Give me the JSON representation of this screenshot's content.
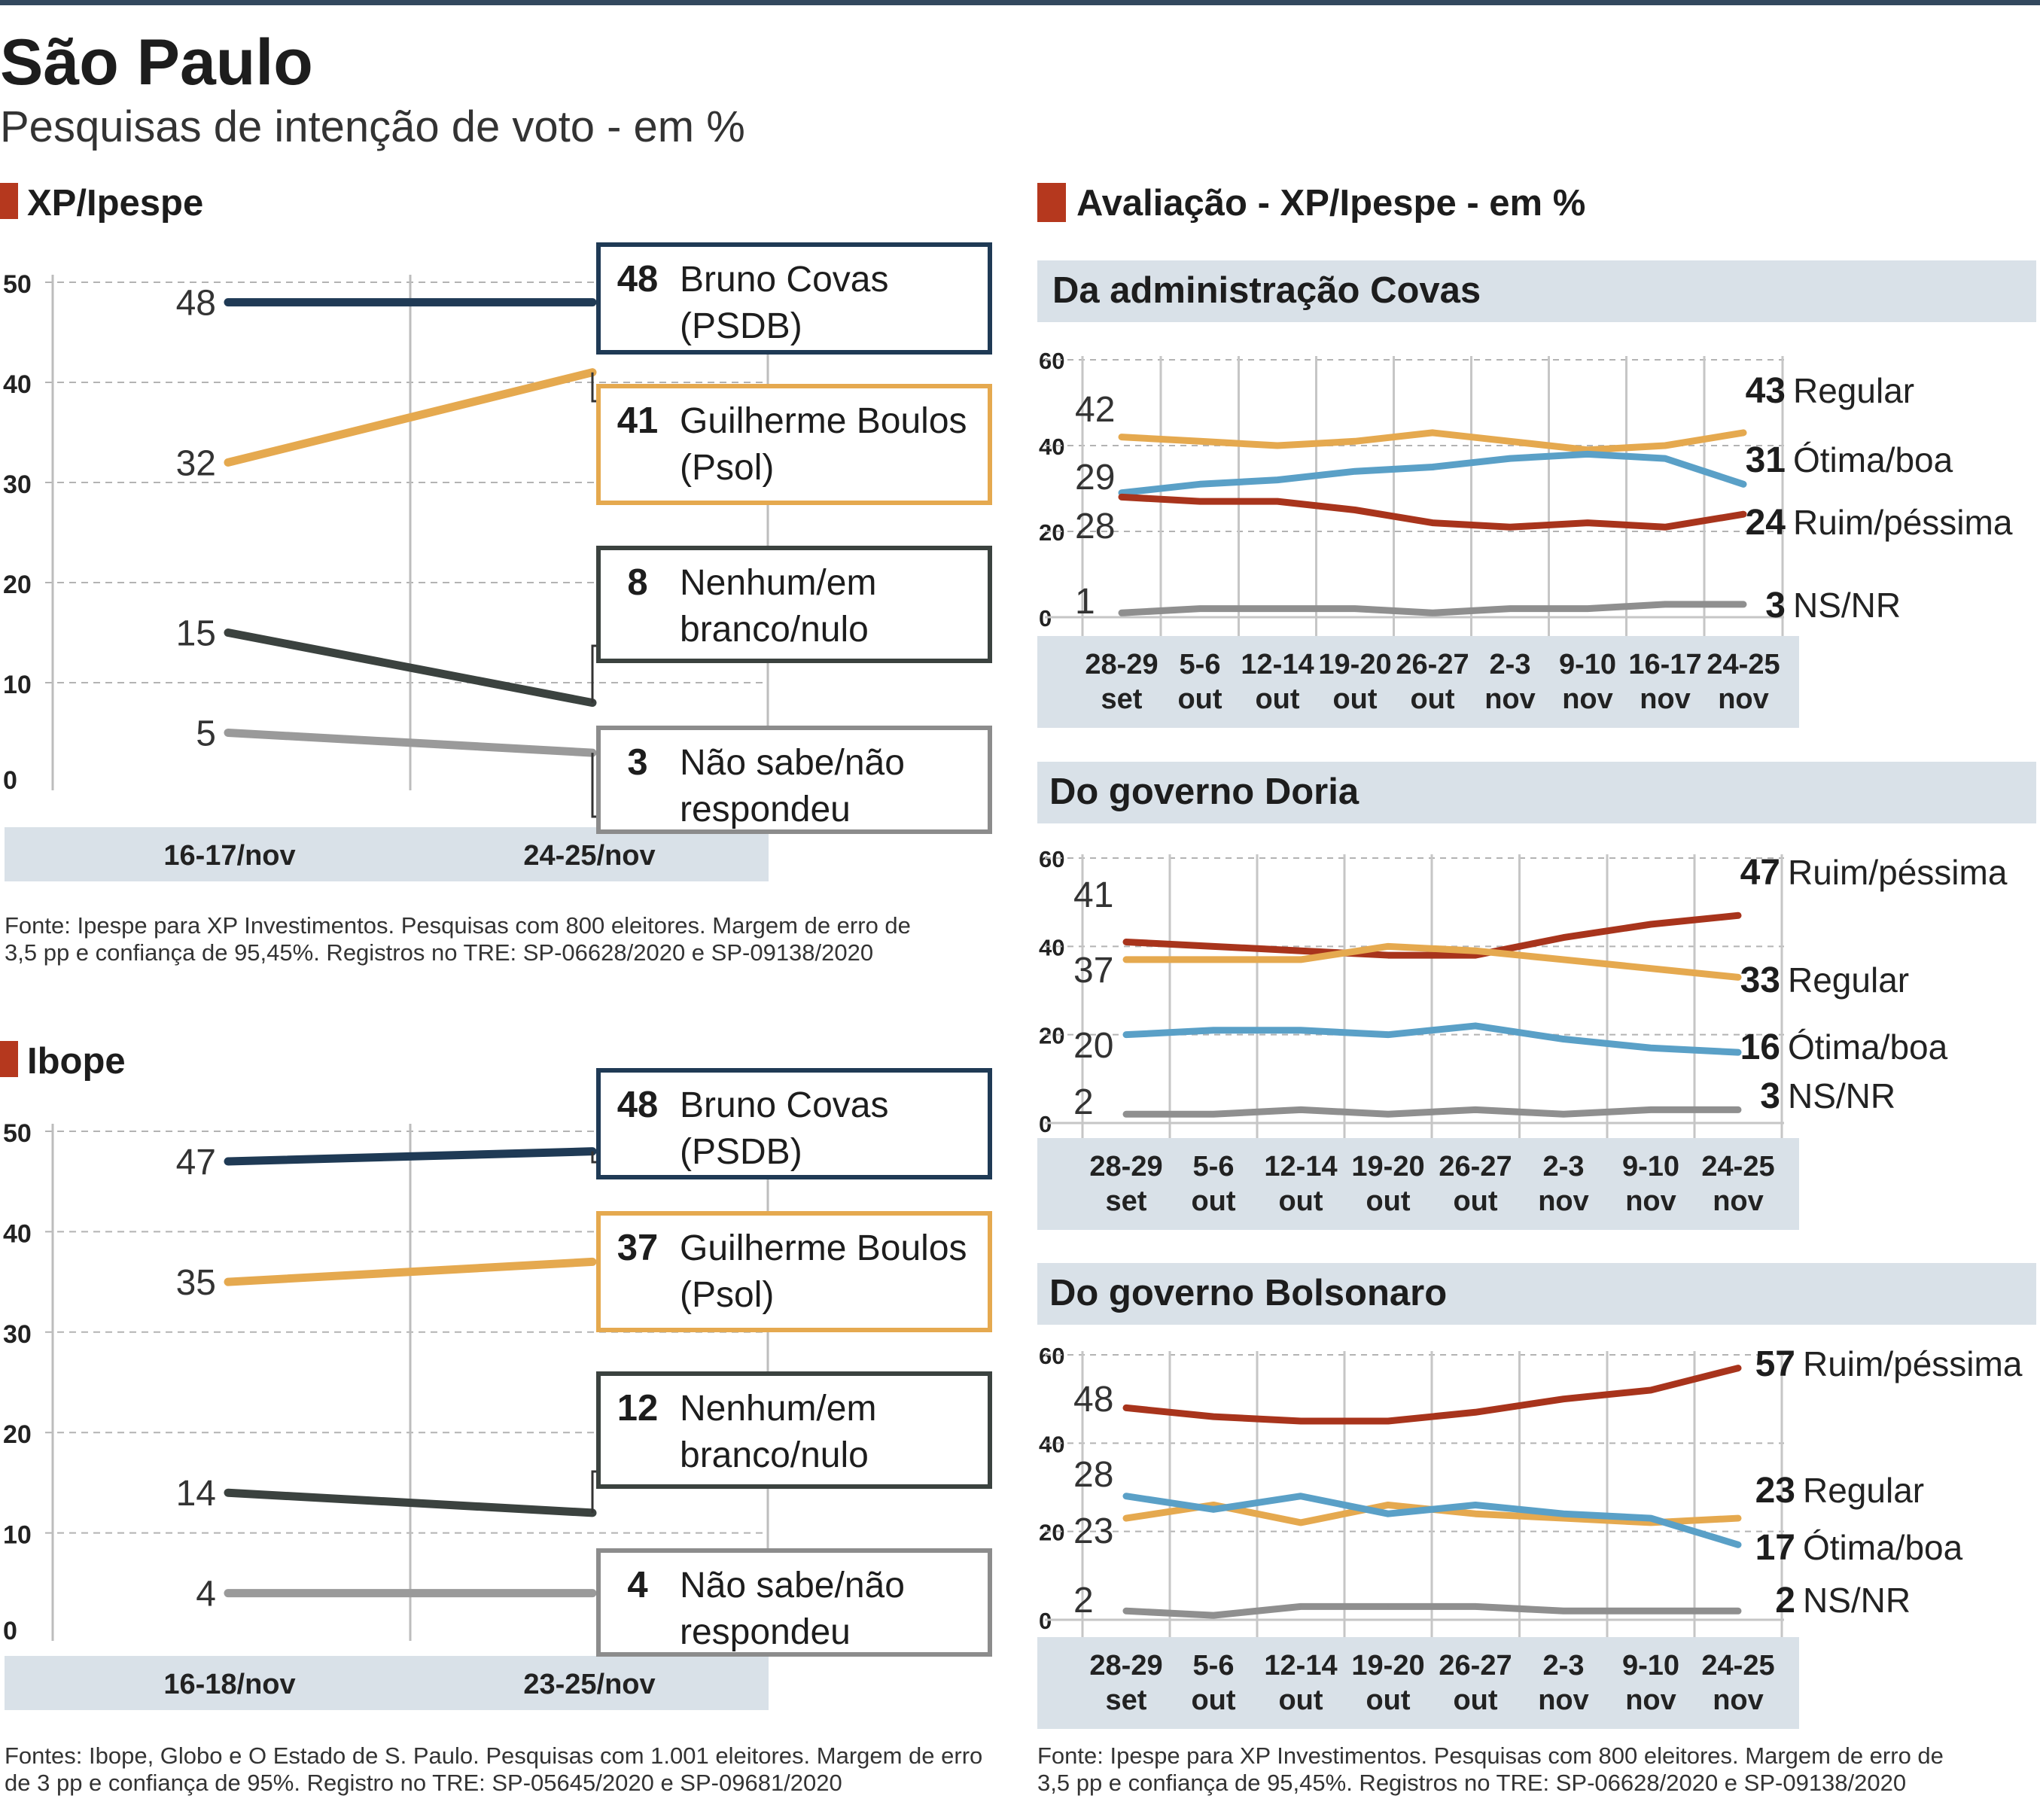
{
  "header": {
    "title": "São Paulo",
    "subtitle": "Pesquisas de intenção de voto  - em %"
  },
  "colors": {
    "accent_square": "#b5381e",
    "band": "#d9e1e8",
    "grid": "#aaaaaa",
    "Covas": "#1f3a55",
    "Boulos": "#e5a94f",
    "Nenhum": "#3b423f",
    "NaoSabe": "#9a9a9a",
    "Regular": "#e5a94f",
    "Otima": "#5aa0c7",
    "Ruim": "#a8341c",
    "NSNR": "#8f8f8f"
  },
  "sections": {
    "xp_title": "XP/Ipespe",
    "ibope_title": "Ibope",
    "aval_title": "Avaliação - XP/Ipespe - em %"
  },
  "sources": {
    "xp": [
      "Fonte: Ipespe para XP Investimentos. Pesquisas com 800 eleitores. Margem de erro de",
      "3,5 pp e confiança de 95,45%. Registros no TRE: SP-06628/2020 e SP-09138/2020"
    ],
    "ibope": [
      "Fontes: Ibope,  Globo e O Estado de S. Paulo. Pesquisas com 1.001 eleitores. Margem de erro",
      "de 3 pp e confiança de 95%. Registro no TRE:  SP-05645/2020 e SP-09681/2020"
    ],
    "aval": [
      "Fonte: Ipespe para XP Investimentos. Pesquisas com 800 eleitores. Margem de erro de",
      "3,5 pp e confiança de 95,45%. Registros no TRE: SP-06628/2020 e SP-09138/2020"
    ]
  },
  "chart_data": [
    {
      "id": "xp",
      "type": "line",
      "title": "XP/Ipespe",
      "categories": [
        "16-17/nov",
        "24-25/nov"
      ],
      "y_ticks": [
        0,
        10,
        20,
        30,
        40,
        50
      ],
      "ylim": [
        0,
        50
      ],
      "grid": true,
      "series": [
        {
          "name": "Bruno Covas",
          "party": "(PSDB)",
          "color_key": "Covas",
          "values": [
            48,
            48
          ]
        },
        {
          "name": "Guilherme Boulos",
          "party": "(Psol)",
          "color_key": "Boulos",
          "values": [
            32,
            41
          ]
        },
        {
          "name": "Nenhum/em",
          "party": "branco/nulo",
          "color_key": "Nenhum",
          "values": [
            15,
            8
          ]
        },
        {
          "name": "Não sabe/não",
          "party": "respondeu",
          "color_key": "NaoSabe",
          "values": [
            5,
            3
          ]
        }
      ]
    },
    {
      "id": "ibope",
      "type": "line",
      "title": "Ibope",
      "categories": [
        "16-18/nov",
        "23-25/nov"
      ],
      "y_ticks": [
        0,
        10,
        20,
        30,
        40,
        50
      ],
      "ylim": [
        0,
        50
      ],
      "grid": true,
      "series": [
        {
          "name": "Bruno Covas",
          "party": "(PSDB)",
          "color_key": "Covas",
          "values": [
            47,
            48
          ]
        },
        {
          "name": "Guilherme Boulos",
          "party": "(Psol)",
          "color_key": "Boulos",
          "values": [
            35,
            37
          ]
        },
        {
          "name": "Nenhum/em",
          "party": "branco/nulo",
          "color_key": "Nenhum",
          "values": [
            14,
            12
          ]
        },
        {
          "name": "Não sabe/não",
          "party": "respondeu",
          "color_key": "NaoSabe",
          "values": [
            4,
            4
          ]
        }
      ]
    },
    {
      "id": "covas",
      "type": "line",
      "title": "Da administração Covas",
      "categories": [
        [
          "28-29",
          "set"
        ],
        [
          "5-6",
          "out"
        ],
        [
          "12-14",
          "out"
        ],
        [
          "19-20",
          "out"
        ],
        [
          "26-27",
          "out"
        ],
        [
          "2-3",
          "nov"
        ],
        [
          "9-10",
          "nov"
        ],
        [
          "16-17",
          "nov"
        ],
        [
          "24-25",
          "nov"
        ]
      ],
      "y_ticks": [
        0,
        20,
        40,
        60
      ],
      "ylim": [
        0,
        60
      ],
      "grid": true,
      "series": [
        {
          "name": "Regular",
          "color_key": "Regular",
          "values": [
            42,
            41,
            40,
            41,
            43,
            41,
            39,
            40,
            43
          ],
          "start_label": "42",
          "end_label": "43"
        },
        {
          "name": "Ótima/boa",
          "color_key": "Otima",
          "values": [
            29,
            31,
            32,
            34,
            35,
            37,
            38,
            37,
            31
          ],
          "start_label": "29",
          "end_label": "31"
        },
        {
          "name": "Ruim/péssima",
          "color_key": "Ruim",
          "values": [
            28,
            27,
            27,
            25,
            22,
            21,
            22,
            21,
            24
          ],
          "start_label": "28",
          "end_label": "24"
        },
        {
          "name": "NS/NR",
          "color_key": "NSNR",
          "values": [
            1,
            2,
            2,
            2,
            1,
            2,
            2,
            3,
            3
          ],
          "start_label": "1",
          "end_label": "3"
        }
      ]
    },
    {
      "id": "doria",
      "type": "line",
      "title": "Do governo Doria",
      "categories": [
        [
          "28-29",
          "set"
        ],
        [
          "5-6",
          "out"
        ],
        [
          "12-14",
          "out"
        ],
        [
          "19-20",
          "out"
        ],
        [
          "26-27",
          "out"
        ],
        [
          "2-3",
          "nov"
        ],
        [
          "9-10",
          "nov"
        ],
        [
          "24-25",
          "nov"
        ]
      ],
      "y_ticks": [
        0,
        20,
        40,
        60
      ],
      "ylim": [
        0,
        60
      ],
      "grid": true,
      "series": [
        {
          "name": "Ruim/péssima",
          "color_key": "Ruim",
          "values": [
            41,
            40,
            39,
            38,
            38,
            42,
            45,
            47
          ],
          "start_label": "41",
          "end_label": "47"
        },
        {
          "name": "Regular",
          "color_key": "Regular",
          "values": [
            37,
            37,
            37,
            40,
            39,
            37,
            35,
            33
          ],
          "start_label": "37",
          "end_label": "33"
        },
        {
          "name": "Ótima/boa",
          "color_key": "Otima",
          "values": [
            20,
            21,
            21,
            20,
            22,
            19,
            17,
            16
          ],
          "start_label": "20",
          "end_label": "16"
        },
        {
          "name": "NS/NR",
          "color_key": "NSNR",
          "values": [
            2,
            2,
            3,
            2,
            3,
            2,
            3,
            3
          ],
          "start_label": "2",
          "end_label": "3"
        }
      ]
    },
    {
      "id": "bolsonaro",
      "type": "line",
      "title": "Do governo Bolsonaro",
      "categories": [
        [
          "28-29",
          "set"
        ],
        [
          "5-6",
          "out"
        ],
        [
          "12-14",
          "out"
        ],
        [
          "19-20",
          "out"
        ],
        [
          "26-27",
          "out"
        ],
        [
          "2-3",
          "nov"
        ],
        [
          "9-10",
          "nov"
        ],
        [
          "24-25",
          "nov"
        ]
      ],
      "y_ticks": [
        0,
        20,
        40,
        60
      ],
      "ylim": [
        0,
        60
      ],
      "grid": true,
      "series": [
        {
          "name": "Ruim/péssima",
          "color_key": "Ruim",
          "values": [
            48,
            46,
            45,
            45,
            47,
            50,
            52,
            57
          ],
          "start_label": "48",
          "end_label": "57"
        },
        {
          "name": "Regular",
          "color_key": "Regular",
          "values": [
            23,
            26,
            22,
            26,
            24,
            23,
            22,
            23
          ],
          "start_label": "23",
          "end_label": "23"
        },
        {
          "name": "Ótima/boa",
          "color_key": "Otima",
          "values": [
            28,
            25,
            28,
            24,
            26,
            24,
            23,
            17
          ],
          "start_label": "28",
          "end_label": "17"
        },
        {
          "name": "NS/NR",
          "color_key": "NSNR",
          "values": [
            2,
            1,
            3,
            3,
            3,
            2,
            2,
            2
          ],
          "start_label": "2",
          "end_label": "2"
        }
      ]
    }
  ]
}
